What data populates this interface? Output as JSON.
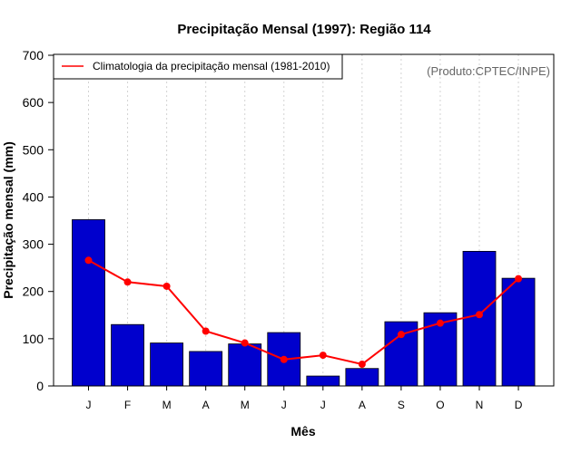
{
  "chart_data": {
    "type": "bar",
    "title": "Precipitação Mensal (1997): Região 114",
    "xlabel": "Mês",
    "ylabel": "Precipitação mensal (mm)",
    "ylim": [
      0,
      700
    ],
    "yticks": [
      0,
      100,
      200,
      300,
      400,
      500,
      600,
      700
    ],
    "grid": "vertical dotted",
    "categories": [
      "J",
      "F",
      "M",
      "A",
      "M",
      "J",
      "J",
      "A",
      "S",
      "O",
      "N",
      "D"
    ],
    "series": [
      {
        "name": "Precipitação mensal (1997)",
        "kind": "bar",
        "color": "#0000cd",
        "values": [
          352,
          130,
          91,
          73,
          89,
          113,
          21,
          37,
          136,
          155,
          285,
          228
        ]
      },
      {
        "name": "Climatologia da precipitação mensal (1981-2010)",
        "kind": "line",
        "color": "#ff0000",
        "values": [
          266,
          220,
          211,
          116,
          91,
          56,
          65,
          46,
          109,
          133,
          151,
          227
        ]
      }
    ],
    "legend": {
      "placement": "top-left",
      "entries": [
        "Climatologia da precipitação mensal (1981-2010)"
      ]
    },
    "annotation": "(Produto:CPTEC/INPE)"
  }
}
